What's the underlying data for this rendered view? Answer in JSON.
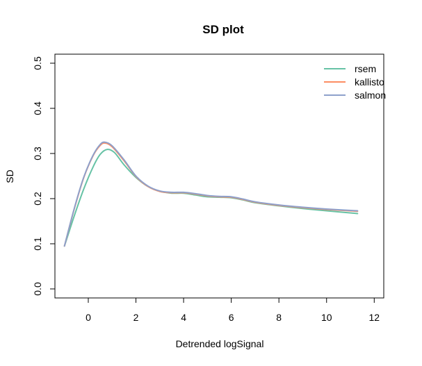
{
  "chart_data": {
    "type": "line",
    "title": "SD plot",
    "xlabel": "Detrended logSignal",
    "ylabel": "SD",
    "xlim": [
      -1.4,
      12.4
    ],
    "ylim": [
      -0.02,
      0.52
    ],
    "xticks": [
      0,
      2,
      4,
      6,
      8,
      10,
      12
    ],
    "yticks": [
      0.0,
      0.1,
      0.2,
      0.3,
      0.4,
      0.5
    ],
    "xtick_labels": [
      "0",
      "2",
      "4",
      "6",
      "8",
      "10",
      "12"
    ],
    "ytick_labels": [
      "0.0",
      "0.1",
      "0.2",
      "0.3",
      "0.4",
      "0.5"
    ],
    "grid": false,
    "legend_position": "top-right",
    "series": [
      {
        "name": "rsem",
        "color": "#66c2a5",
        "x": [
          -1.0,
          -0.6,
          -0.2,
          0.2,
          0.5,
          0.8,
          1.1,
          1.5,
          2.0,
          2.5,
          3.0,
          3.5,
          4.0,
          4.5,
          5.0,
          5.5,
          6.0,
          6.5,
          7.0,
          8.0,
          9.0,
          10.0,
          11.3
        ],
        "y": [
          0.095,
          0.16,
          0.22,
          0.27,
          0.298,
          0.309,
          0.302,
          0.275,
          0.247,
          0.227,
          0.216,
          0.212,
          0.212,
          0.208,
          0.204,
          0.203,
          0.202,
          0.197,
          0.191,
          0.184,
          0.178,
          0.173,
          0.167
        ]
      },
      {
        "name": "kallisto",
        "color": "#fc8d62",
        "x": [
          -1.0,
          -0.6,
          -0.2,
          0.2,
          0.5,
          0.7,
          1.0,
          1.5,
          2.0,
          2.5,
          3.0,
          3.5,
          4.0,
          4.5,
          5.0,
          5.5,
          6.0,
          6.5,
          7.0,
          8.0,
          9.0,
          10.0,
          11.3
        ],
        "y": [
          0.095,
          0.175,
          0.245,
          0.295,
          0.318,
          0.323,
          0.315,
          0.284,
          0.249,
          0.227,
          0.216,
          0.213,
          0.213,
          0.21,
          0.206,
          0.204,
          0.203,
          0.198,
          0.192,
          0.185,
          0.18,
          0.176,
          0.172
        ]
      },
      {
        "name": "salmon",
        "color": "#8da0cb",
        "x": [
          -1.0,
          -0.6,
          -0.2,
          0.2,
          0.5,
          0.7,
          1.0,
          1.5,
          2.0,
          2.5,
          3.0,
          3.5,
          4.0,
          4.5,
          5.0,
          5.5,
          6.0,
          6.5,
          7.0,
          8.0,
          9.0,
          10.0,
          11.3
        ],
        "y": [
          0.095,
          0.176,
          0.246,
          0.296,
          0.32,
          0.325,
          0.317,
          0.286,
          0.25,
          0.228,
          0.217,
          0.214,
          0.214,
          0.211,
          0.207,
          0.205,
          0.204,
          0.199,
          0.193,
          0.186,
          0.181,
          0.177,
          0.173
        ]
      }
    ]
  }
}
